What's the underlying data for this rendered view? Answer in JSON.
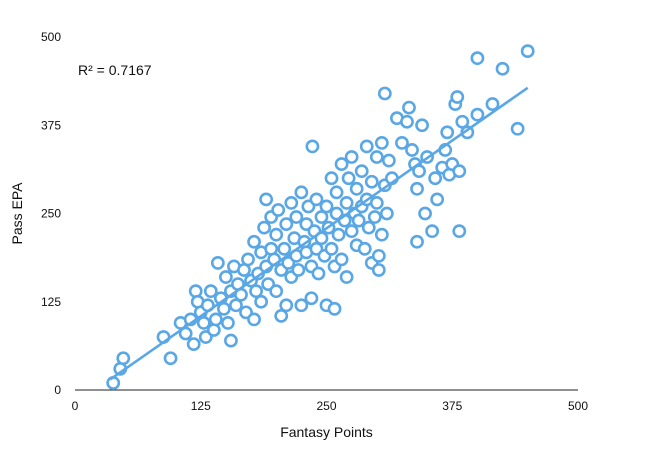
{
  "chart_data": {
    "type": "scatter",
    "title": "",
    "xlabel": "Fantasy Points",
    "ylabel": "Pass EPA",
    "xlim": [
      0,
      500
    ],
    "ylim": [
      0,
      500
    ],
    "xticks": [
      0,
      125,
      250,
      375,
      500
    ],
    "yticks": [
      0,
      125,
      250,
      375,
      500
    ],
    "grid": false,
    "legend": "none",
    "annotation": "R² = 0.7167",
    "point_color": "#5aa7e6",
    "trendline": {
      "type": "linear",
      "x": [
        35,
        450
      ],
      "y": [
        15,
        428
      ]
    },
    "series": [
      {
        "points": [
          [
            38,
            10
          ],
          [
            45,
            30
          ],
          [
            48,
            45
          ],
          [
            88,
            75
          ],
          [
            95,
            45
          ],
          [
            105,
            95
          ],
          [
            110,
            80
          ],
          [
            115,
            100
          ],
          [
            118,
            65
          ],
          [
            120,
            140
          ],
          [
            122,
            125
          ],
          [
            125,
            110
          ],
          [
            128,
            95
          ],
          [
            130,
            75
          ],
          [
            132,
            120
          ],
          [
            135,
            140
          ],
          [
            138,
            85
          ],
          [
            140,
            100
          ],
          [
            142,
            180
          ],
          [
            145,
            130
          ],
          [
            148,
            115
          ],
          [
            150,
            160
          ],
          [
            152,
            95
          ],
          [
            155,
            70
          ],
          [
            155,
            140
          ],
          [
            158,
            175
          ],
          [
            160,
            120
          ],
          [
            162,
            150
          ],
          [
            165,
            135
          ],
          [
            168,
            170
          ],
          [
            170,
            110
          ],
          [
            172,
            185
          ],
          [
            175,
            155
          ],
          [
            178,
            100
          ],
          [
            178,
            210
          ],
          [
            180,
            140
          ],
          [
            182,
            165
          ],
          [
            185,
            125
          ],
          [
            185,
            195
          ],
          [
            188,
            230
          ],
          [
            190,
            175
          ],
          [
            190,
            270
          ],
          [
            192,
            150
          ],
          [
            195,
            200
          ],
          [
            195,
            245
          ],
          [
            198,
            185
          ],
          [
            200,
            140
          ],
          [
            200,
            220
          ],
          [
            202,
            255
          ],
          [
            205,
            170
          ],
          [
            205,
            105
          ],
          [
            208,
            200
          ],
          [
            210,
            235
          ],
          [
            210,
            120
          ],
          [
            212,
            180
          ],
          [
            215,
            265
          ],
          [
            215,
            160
          ],
          [
            218,
            215
          ],
          [
            220,
            190
          ],
          [
            220,
            245
          ],
          [
            222,
            170
          ],
          [
            225,
            280
          ],
          [
            225,
            120
          ],
          [
            228,
            210
          ],
          [
            230,
            235
          ],
          [
            230,
            195
          ],
          [
            232,
            260
          ],
          [
            235,
            175
          ],
          [
            235,
            130
          ],
          [
            236,
            345
          ],
          [
            238,
            225
          ],
          [
            240,
            200
          ],
          [
            240,
            270
          ],
          [
            242,
            165
          ],
          [
            245,
            245
          ],
          [
            245,
            215
          ],
          [
            248,
            190
          ],
          [
            250,
            260
          ],
          [
            250,
            120
          ],
          [
            252,
            230
          ],
          [
            255,
            300
          ],
          [
            255,
            200
          ],
          [
            258,
            175
          ],
          [
            258,
            115
          ],
          [
            260,
            250
          ],
          [
            260,
            280
          ],
          [
            262,
            220
          ],
          [
            265,
            320
          ],
          [
            265,
            185
          ],
          [
            268,
            240
          ],
          [
            270,
            265
          ],
          [
            270,
            160
          ],
          [
            272,
            300
          ],
          [
            275,
            225
          ],
          [
            275,
            330
          ],
          [
            278,
            250
          ],
          [
            280,
            205
          ],
          [
            280,
            285
          ],
          [
            282,
            240
          ],
          [
            285,
            260
          ],
          [
            285,
            310
          ],
          [
            288,
            200
          ],
          [
            290,
            270
          ],
          [
            290,
            345
          ],
          [
            292,
            230
          ],
          [
            295,
            180
          ],
          [
            295,
            295
          ],
          [
            298,
            245
          ],
          [
            300,
            330
          ],
          [
            300,
            265
          ],
          [
            302,
            190
          ],
          [
            302,
            170
          ],
          [
            305,
            350
          ],
          [
            305,
            220
          ],
          [
            308,
            290
          ],
          [
            308,
            420
          ],
          [
            310,
            250
          ],
          [
            312,
            325
          ],
          [
            315,
            300
          ],
          [
            320,
            385
          ],
          [
            325,
            350
          ],
          [
            330,
            380
          ],
          [
            332,
            400
          ],
          [
            335,
            340
          ],
          [
            338,
            320
          ],
          [
            340,
            285
          ],
          [
            340,
            210
          ],
          [
            342,
            310
          ],
          [
            345,
            375
          ],
          [
            348,
            250
          ],
          [
            350,
            330
          ],
          [
            355,
            225
          ],
          [
            358,
            300
          ],
          [
            360,
            270
          ],
          [
            365,
            315
          ],
          [
            368,
            340
          ],
          [
            370,
            365
          ],
          [
            372,
            305
          ],
          [
            375,
            320
          ],
          [
            378,
            405
          ],
          [
            380,
            415
          ],
          [
            382,
            225
          ],
          [
            382,
            310
          ],
          [
            385,
            380
          ],
          [
            390,
            365
          ],
          [
            400,
            390
          ],
          [
            400,
            470
          ],
          [
            415,
            405
          ],
          [
            425,
            455
          ],
          [
            440,
            370
          ],
          [
            450,
            480
          ]
        ]
      }
    ]
  }
}
